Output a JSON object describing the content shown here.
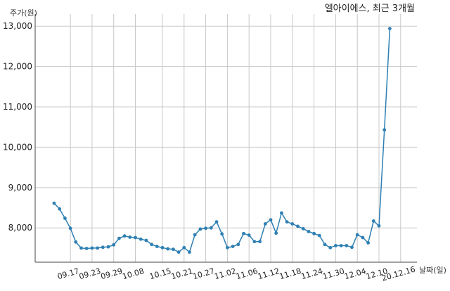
{
  "chart_data": {
    "type": "line",
    "title": "엘아이에스, 최근 3개월",
    "ylabel": "주가(원)",
    "xlabel": "날짜(일)",
    "ylim": [
      7150,
      13300
    ],
    "yticks": [
      8000,
      9000,
      10000,
      11000,
      12000,
      13000
    ],
    "ytick_labels": [
      "8,000",
      "9,000",
      "10,000",
      "11,000",
      "12,000",
      "13,000"
    ],
    "xticks": [
      {
        "label": "09.17",
        "index": 3
      },
      {
        "label": "09.23",
        "index": 7
      },
      {
        "label": "09.29",
        "index": 11
      },
      {
        "label": "10.08",
        "index": 15
      },
      {
        "label": "10.15",
        "index": 20
      },
      {
        "label": "10.21",
        "index": 24
      },
      {
        "label": "10.27",
        "index": 28
      },
      {
        "label": "11.02",
        "index": 32
      },
      {
        "label": "11.06",
        "index": 36
      },
      {
        "label": "11.12",
        "index": 40
      },
      {
        "label": "11.18",
        "index": 44
      },
      {
        "label": "11.24",
        "index": 48
      },
      {
        "label": "11.30",
        "index": 52
      },
      {
        "label": "12.04",
        "index": 56
      },
      {
        "label": "12.10",
        "index": 60
      },
      {
        "label": "20.12.16",
        "index": 64
      }
    ],
    "grid": true,
    "line_color": "#2e7fb3",
    "series": [
      {
        "values": [
          8610,
          8470,
          8240,
          7990,
          7650,
          7500,
          7490,
          7500,
          7500,
          7520,
          7530,
          7580,
          7740,
          7800,
          7770,
          7760,
          7720,
          7690,
          7590,
          7540,
          7510,
          7480,
          7470,
          7400,
          7510,
          7400,
          7830,
          7970,
          7990,
          8000,
          8150,
          7850,
          7510,
          7540,
          7590,
          7860,
          7820,
          7660,
          7660,
          8100,
          8200,
          7870,
          8370,
          8150,
          8100,
          8040,
          7980,
          7910,
          7860,
          7810,
          7590,
          7510,
          7560,
          7560,
          7560,
          7520,
          7830,
          7760,
          7630,
          8170,
          8050,
          10430,
          12940
        ]
      }
    ]
  }
}
